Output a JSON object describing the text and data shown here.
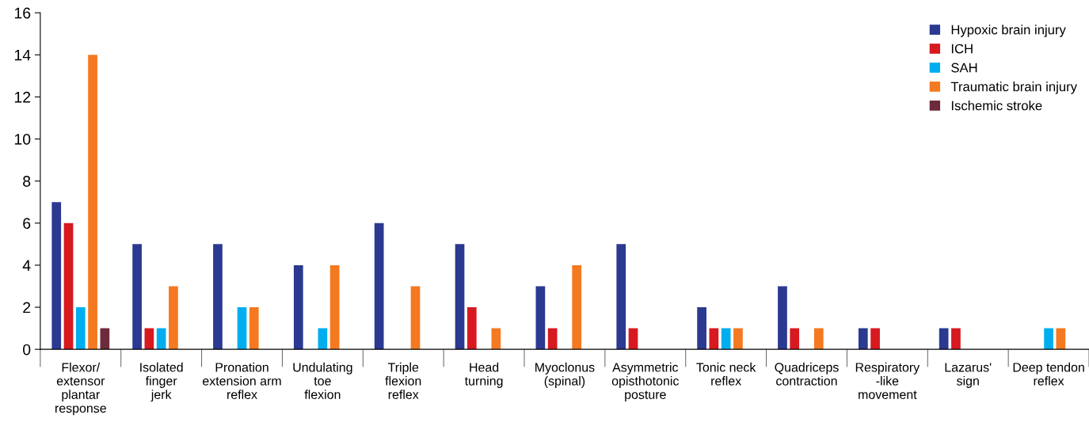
{
  "chart_data": {
    "type": "bar",
    "categories": [
      "Flexor/\nextensor\nplantar\nresponse",
      "Isolated\nfinger\njerk",
      "Pronation\nextension arm\nreflex",
      "Undulating\ntoe\nflexion",
      "Triple\nflexion\nreflex",
      "Head\nturning",
      "Myoclonus\n(spinal)",
      "Asymmetric\nopisthotonic\nposture",
      "Tonic neck\nreflex",
      "Quadriceps\ncontraction",
      "Respiratory\n-like\nmovement",
      "Lazarus'\nsign",
      "Deep tendon\nreflex"
    ],
    "series": [
      {
        "name": "Hypoxic brain injury",
        "color": "#2b3990",
        "values": [
          7,
          5,
          5,
          4,
          6,
          5,
          3,
          5,
          2,
          3,
          1,
          1,
          0
        ]
      },
      {
        "name": "ICH",
        "color": "#d71920",
        "values": [
          6,
          1,
          0,
          0,
          0,
          2,
          1,
          1,
          1,
          1,
          1,
          1,
          0
        ]
      },
      {
        "name": "SAH",
        "color": "#00aeef",
        "values": [
          2,
          1,
          2,
          1,
          0,
          0,
          0,
          0,
          1,
          0,
          0,
          0,
          1
        ]
      },
      {
        "name": "Traumatic brain injury",
        "color": "#f47920",
        "values": [
          14,
          3,
          2,
          4,
          3,
          1,
          4,
          0,
          1,
          1,
          0,
          0,
          1
        ]
      },
      {
        "name": "Ischemic stroke",
        "color": "#6d2a3a",
        "values": [
          1,
          0,
          0,
          0,
          0,
          0,
          0,
          0,
          0,
          0,
          0,
          0,
          0
        ]
      }
    ],
    "ylim": [
      0,
      16
    ],
    "yticks": [
      0,
      2,
      4,
      6,
      8,
      10,
      12,
      14,
      16
    ],
    "grid": false,
    "legend": "top right"
  }
}
